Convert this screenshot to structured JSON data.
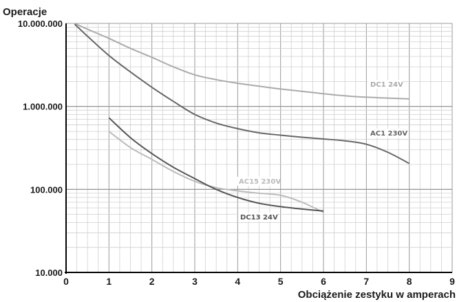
{
  "chart_data": {
    "type": "line",
    "ylabel": "Operacje",
    "xlabel": "Obciążenie zestyku w amperach",
    "xlim": [
      0,
      9
    ],
    "ylim": [
      10000,
      10000000
    ],
    "y_scale": "log",
    "grid": true,
    "x_ticks": [
      "0",
      "1",
      "2",
      "3",
      "4",
      "5",
      "6",
      "7",
      "8",
      "9"
    ],
    "y_ticks": [
      {
        "value": 10000,
        "label": "10.000"
      },
      {
        "value": 100000,
        "label": "100.000"
      },
      {
        "value": 1000000,
        "label": "1.000.000"
      },
      {
        "value": 10000000,
        "label": "10.000.000"
      }
    ],
    "series": [
      {
        "name": "DC1 24V",
        "color": "#aaaaaa",
        "points": [
          [
            0.2,
            10000000
          ],
          [
            0.5,
            8500000
          ],
          [
            1,
            6600000
          ],
          [
            1.5,
            5000000
          ],
          [
            2,
            3900000
          ],
          [
            2.5,
            3000000
          ],
          [
            3,
            2400000
          ],
          [
            3.5,
            2100000
          ],
          [
            4,
            1900000
          ],
          [
            4.5,
            1750000
          ],
          [
            5,
            1620000
          ],
          [
            5.5,
            1520000
          ],
          [
            6,
            1420000
          ],
          [
            6.5,
            1340000
          ],
          [
            7,
            1290000
          ],
          [
            7.5,
            1260000
          ],
          [
            8,
            1230000
          ]
        ]
      },
      {
        "name": "AC1 230V",
        "color": "#666666",
        "points": [
          [
            0.2,
            9800000
          ],
          [
            0.5,
            7000000
          ],
          [
            1,
            4100000
          ],
          [
            1.5,
            2600000
          ],
          [
            2,
            1700000
          ],
          [
            2.5,
            1150000
          ],
          [
            3,
            800000
          ],
          [
            3.5,
            630000
          ],
          [
            4,
            540000
          ],
          [
            4.5,
            480000
          ],
          [
            5,
            450000
          ],
          [
            5.5,
            425000
          ],
          [
            6,
            405000
          ],
          [
            6.5,
            385000
          ],
          [
            7,
            350000
          ],
          [
            7.5,
            280000
          ],
          [
            8,
            205000
          ]
        ]
      },
      {
        "name": "AC15 230V",
        "color": "#bbbbbb",
        "points": [
          [
            1,
            500000
          ],
          [
            1.5,
            320000
          ],
          [
            2,
            230000
          ],
          [
            2.5,
            165000
          ],
          [
            3,
            125000
          ],
          [
            3.5,
            105000
          ],
          [
            4,
            96000
          ],
          [
            4.5,
            90000
          ],
          [
            5,
            85000
          ],
          [
            5.5,
            70000
          ],
          [
            6,
            53000
          ]
        ]
      },
      {
        "name": "DC13 24V",
        "color": "#555555",
        "points": [
          [
            1,
            730000
          ],
          [
            1.5,
            420000
          ],
          [
            2,
            270000
          ],
          [
            2.5,
            185000
          ],
          [
            3,
            135000
          ],
          [
            3.5,
            100000
          ],
          [
            4,
            80000
          ],
          [
            4.5,
            68000
          ],
          [
            5,
            62000
          ],
          [
            5.5,
            58000
          ],
          [
            6,
            55000
          ]
        ]
      }
    ]
  }
}
